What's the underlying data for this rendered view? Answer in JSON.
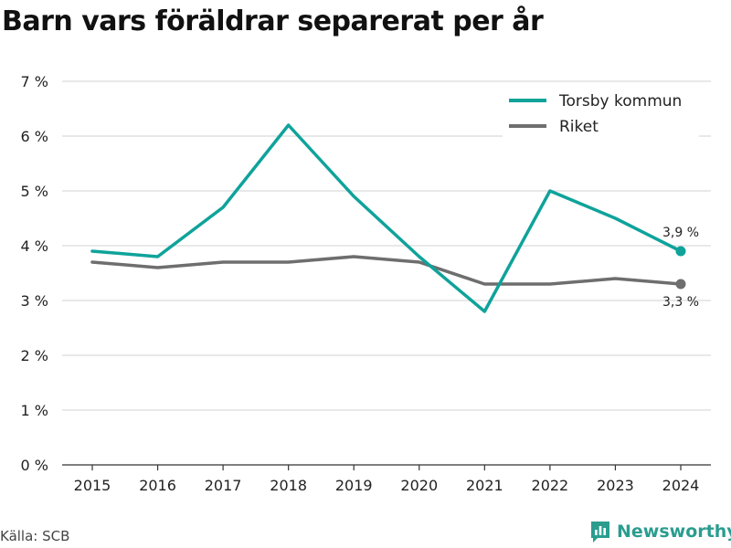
{
  "title": "Barn vars föräldrar separerat per år",
  "source": "Källa: SCB",
  "brand": "Newsworthy",
  "colors": {
    "torsby": "#0fa39a",
    "riket": "#6e6e6e",
    "grid": "#d9d9d9",
    "axis": "#333333",
    "brand": "#2a9d8f"
  },
  "chart_data": {
    "type": "line",
    "title": "Barn vars föräldrar separerat per år",
    "x": [
      "2015",
      "2016",
      "2017",
      "2018",
      "2019",
      "2020",
      "2021",
      "2022",
      "2023",
      "2024"
    ],
    "series": [
      {
        "name": "Torsby kommun",
        "values": [
          3.9,
          3.8,
          4.7,
          6.2,
          4.9,
          3.8,
          2.8,
          5.0,
          4.5,
          3.9
        ],
        "end_label": "3,9 %"
      },
      {
        "name": "Riket",
        "values": [
          3.7,
          3.6,
          3.7,
          3.7,
          3.8,
          3.7,
          3.3,
          3.3,
          3.4,
          3.3
        ],
        "end_label": "3,3 %"
      }
    ],
    "ylim": [
      0,
      7
    ],
    "yticks": [
      0,
      1,
      2,
      3,
      4,
      5,
      6,
      7
    ],
    "ytick_labels": [
      "0 %",
      "1 %",
      "2 %",
      "3 %",
      "4 %",
      "5 %",
      "6 %",
      "7 %"
    ],
    "xlabel": "",
    "ylabel": "",
    "grid": true,
    "legend": "top-right"
  }
}
